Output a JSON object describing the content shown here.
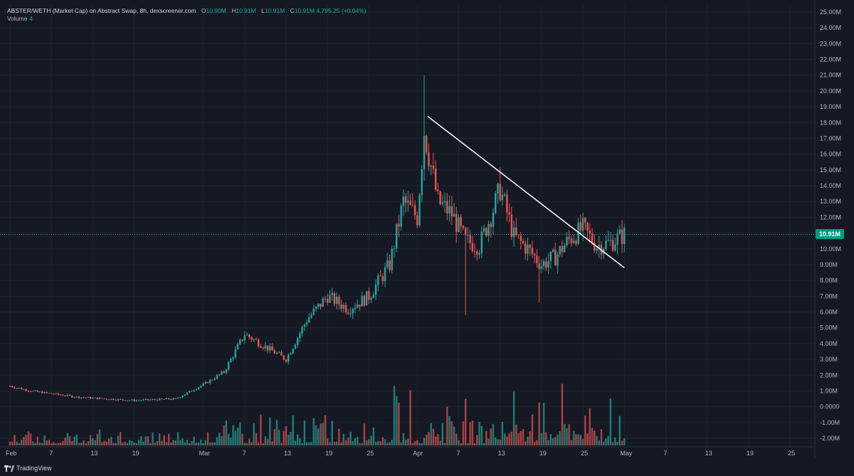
{
  "header": {
    "symbol": "ABSTER/WETH (Market Cap) on Abstract Swap, 8h, dexscreener.com",
    "open_label": "O",
    "open": "10.90M",
    "high_label": "H",
    "high": "10.91M",
    "low_label": "L",
    "low": "10.91M",
    "close_label": "C",
    "close": "10.91M",
    "change": "4,795.25 (+0.04%)",
    "volume_label": "Volume",
    "volume": "4"
  },
  "brand": "TradingView",
  "colors": {
    "background": "#151924",
    "up": "#26a69a",
    "down": "#ef5350",
    "trendline": "#ffffff",
    "grid": "#1f2330"
  },
  "chart_data": {
    "type": "candlestick",
    "title": "",
    "interval": "8h",
    "xlabel": "",
    "ylabel": "",
    "y_axis_position": "right",
    "ylim": [
      -2000000,
      25000000
    ],
    "y_ticks": [
      "25.00M",
      "24.00M",
      "23.00M",
      "22.00M",
      "21.00M",
      "20.00M",
      "19.00M",
      "18.00M",
      "17.00M",
      "16.00M",
      "15.00M",
      "14.00M",
      "13.00M",
      "12.00M",
      "11.00M",
      "10.00M",
      "9.00M",
      "8.00M",
      "7.00M",
      "6.00M",
      "5.00M",
      "4.00M",
      "3.00M",
      "2.00M",
      "1.00M",
      "0.0000",
      "-1.00M",
      "-2.00M"
    ],
    "x_ticks": [
      "Feb",
      "7",
      "13",
      "19",
      "Mar",
      "7",
      "13",
      "19",
      "25",
      "Apr",
      "7",
      "13",
      "19",
      "25",
      "May",
      "7",
      "13",
      "19",
      "25"
    ],
    "last_price_label": "10.91M",
    "last_price": 10910000,
    "grid": true,
    "key_points": [
      {
        "date": "Feb 1",
        "close_m": 1.3
      },
      {
        "date": "Feb 19",
        "close_m": 0.4
      },
      {
        "date": "Mar 1",
        "close_m": 1.4
      },
      {
        "date": "Mar 7",
        "close_m": 4.8
      },
      {
        "date": "Mar 13",
        "close_m": 3.0
      },
      {
        "date": "Mar 19",
        "close_m": 7.0
      },
      {
        "date": "Mar 25",
        "close_m": 7.0
      },
      {
        "date": "Mar 30",
        "close_m": 13.0
      },
      {
        "date": "Apr 2",
        "high_m": 21.0,
        "close_m": 17.5
      },
      {
        "date": "Apr 7",
        "low_m": 5.8,
        "close_m": 10.5
      },
      {
        "date": "Apr 12",
        "high_m": 15.2,
        "close_m": 12.0
      },
      {
        "date": "Apr 17",
        "low_m": 6.6,
        "close_m": 9.0
      },
      {
        "date": "Apr 24",
        "close_m": 11.3
      },
      {
        "date": "Apr 29",
        "close_m": 10.91
      }
    ],
    "trendline": {
      "start": {
        "date": "Apr 2",
        "value_m": 18.4
      },
      "end": {
        "date": "May 1",
        "value_m": 8.8
      }
    }
  }
}
